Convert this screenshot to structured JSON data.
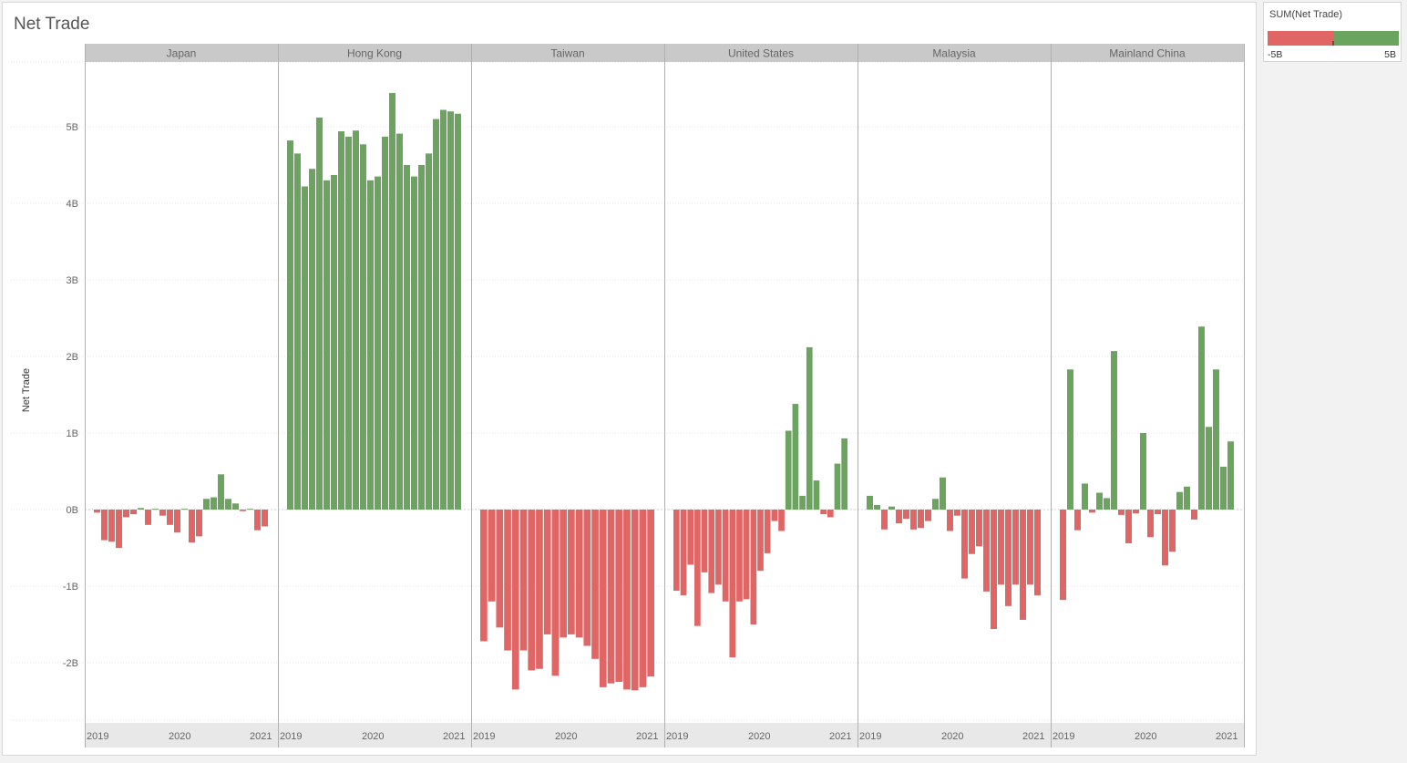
{
  "title": "Net Trade",
  "legend": {
    "title": "SUM(Net Trade)",
    "min_label": "-5B",
    "max_label": "5B",
    "negative_color": "#e06666",
    "positive_color": "#6aa45f"
  },
  "colors": {
    "positive": "#6aa45f",
    "negative": "#e06666",
    "header_bg": "#c9c9c9",
    "axis_bg": "#e8e8e8"
  },
  "chart_data": {
    "type": "bar",
    "title": "Net Trade",
    "ylabel": "Net Trade",
    "ylim": [
      -2.4,
      5.8
    ],
    "yticks": [
      {
        "value": 5,
        "label": "5B"
      },
      {
        "value": 4,
        "label": "4B"
      },
      {
        "value": 3,
        "label": "3B"
      },
      {
        "value": 2,
        "label": "2B"
      },
      {
        "value": 1,
        "label": "1B"
      },
      {
        "value": 0,
        "label": "0B"
      },
      {
        "value": -1,
        "label": "-1B"
      },
      {
        "value": -2,
        "label": "-2B"
      }
    ],
    "xticks": [
      "2019",
      "2020",
      "2021"
    ],
    "grid": true,
    "legend_placement": "top-right",
    "series": [
      {
        "name": "Japan",
        "values": [
          -0.04,
          -0.4,
          -0.42,
          -0.5,
          -0.1,
          -0.06,
          0.02,
          -0.2,
          0.01,
          -0.08,
          -0.2,
          -0.3,
          0.01,
          -0.43,
          -0.35,
          0.14,
          0.16,
          0.46,
          0.14,
          0.08,
          -0.02,
          0.01,
          -0.27,
          -0.22
        ]
      },
      {
        "name": "Hong Kong",
        "values": [
          4.82,
          4.65,
          4.22,
          4.45,
          5.12,
          4.3,
          4.37,
          4.94,
          4.87,
          4.95,
          4.77,
          4.3,
          4.35,
          4.87,
          5.44,
          4.91,
          4.5,
          4.35,
          4.5,
          4.65,
          5.1,
          5.22,
          5.2,
          5.17
        ]
      },
      {
        "name": "Taiwan",
        "values": [
          -1.72,
          -1.2,
          -1.54,
          -1.84,
          -2.35,
          -1.84,
          -2.1,
          -2.08,
          -1.63,
          -2.17,
          -1.67,
          -1.63,
          -1.67,
          -1.78,
          -1.95,
          -2.32,
          -2.27,
          -2.25,
          -2.35,
          -2.36,
          -2.32,
          -2.18
        ]
      },
      {
        "name": "United States",
        "values": [
          -1.06,
          -1.12,
          -0.72,
          -1.52,
          -0.82,
          -1.09,
          -0.98,
          -1.2,
          -1.93,
          -1.2,
          -1.17,
          -1.5,
          -0.8,
          -0.57,
          -0.15,
          -0.28,
          1.03,
          1.38,
          0.18,
          2.12,
          0.38,
          -0.06,
          -0.1,
          0.6,
          0.93
        ]
      },
      {
        "name": "Malaysia",
        "values": [
          0.18,
          0.06,
          -0.26,
          0.04,
          -0.18,
          -0.12,
          -0.26,
          -0.24,
          -0.15,
          0.14,
          0.42,
          -0.28,
          -0.08,
          -0.9,
          -0.58,
          -0.48,
          -1.07,
          -1.56,
          -0.98,
          -1.26,
          -0.98,
          -1.44,
          -0.98,
          -1.12
        ]
      },
      {
        "name": "Mainland China",
        "values": [
          -1.18,
          1.83,
          -0.27,
          0.34,
          -0.04,
          0.22,
          0.15,
          2.07,
          -0.07,
          -0.44,
          -0.05,
          1.0,
          -0.36,
          -0.06,
          -0.73,
          -0.55,
          0.23,
          0.3,
          -0.13,
          2.39,
          1.08,
          1.83,
          0.56,
          0.89
        ]
      }
    ]
  }
}
